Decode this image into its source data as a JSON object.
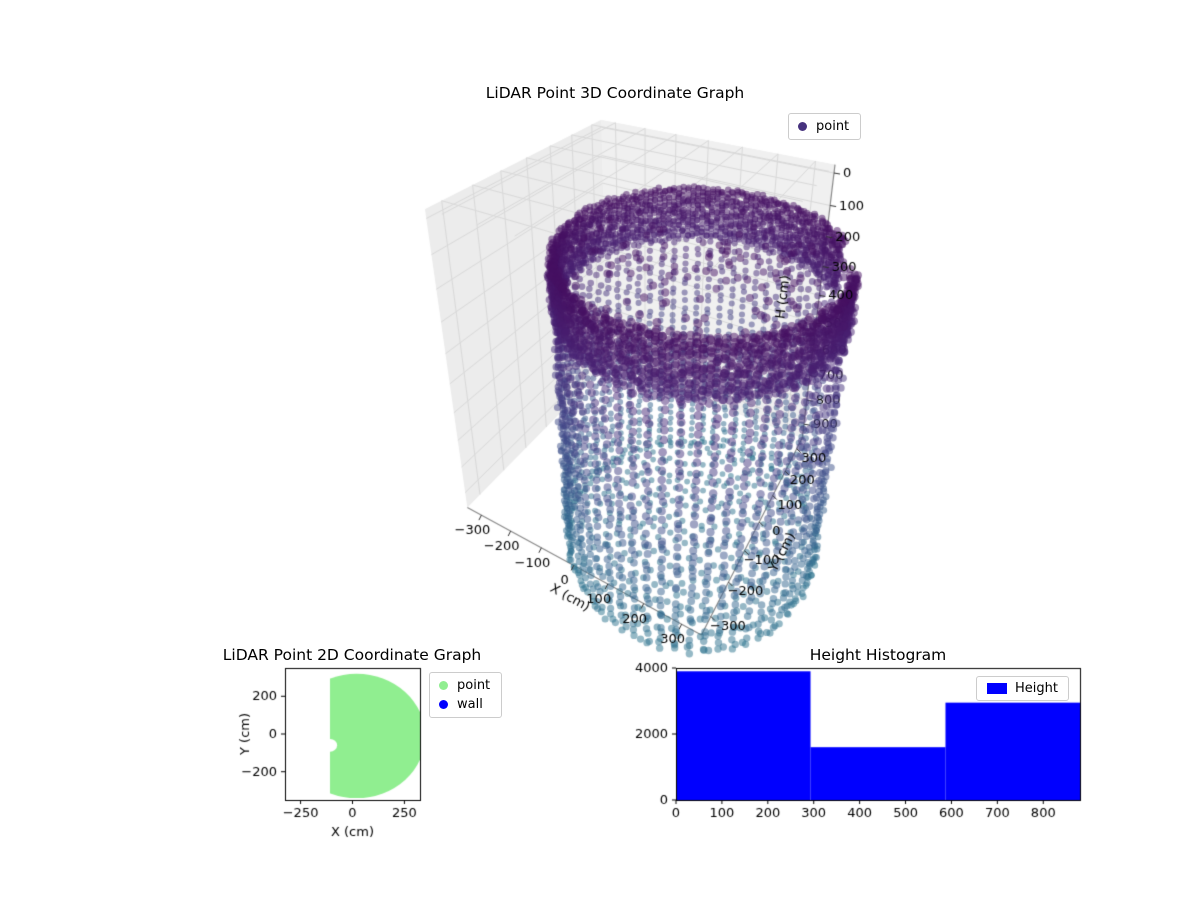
{
  "figure": {
    "background": "#ffffff"
  },
  "chart_data": [
    {
      "id": "lidar-3d",
      "type": "scatter3d",
      "title": "LiDAR Point 3D Coordinate Graph",
      "xlabel": "X (cm)",
      "ylabel": "Y (cm)",
      "zlabel": "H (cm)",
      "xlim": [
        -350,
        350
      ],
      "ylim": [
        -350,
        350
      ],
      "hlim": [
        -25,
        960
      ],
      "h_axis_inverted": true,
      "x_ticks": [
        -300,
        -200,
        -100,
        0,
        100,
        200,
        300
      ],
      "y_ticks": [
        -300,
        -200,
        -100,
        0,
        100,
        200,
        300
      ],
      "h_ticks": [
        0,
        100,
        200,
        300,
        400,
        500,
        600,
        700,
        800,
        900
      ],
      "h_ticks_visible_max": 400,
      "legend": [
        {
          "label": "point",
          "color": "#46327e"
        }
      ],
      "view": {
        "azim_deg": -60,
        "elev_deg": 30,
        "dist": 5
      },
      "point_alpha": 0.5,
      "colormap_stops": [
        [
          0.0,
          "#440154"
        ],
        [
          0.1,
          "#482475"
        ],
        [
          0.2,
          "#414487"
        ],
        [
          0.3,
          "#355f8d"
        ],
        [
          0.4,
          "#2a788e"
        ],
        [
          0.5,
          "#21918c"
        ]
      ],
      "cmap_range": [
        0.04,
        0.38
      ],
      "cloud": {
        "shape": "cylinder-room",
        "center_x": 230,
        "center_y": -170,
        "radius": 300,
        "h_min": 0,
        "h_max": 880,
        "gap_azim_deg": [
          14,
          38
        ],
        "dense_band": {
          "h_to": 150,
          "columns": 160,
          "h_step": 9
        },
        "wall": {
          "columns": 62,
          "h_step": 24
        },
        "ceiling": {
          "count": 150,
          "h_to": 70
        },
        "floor": {
          "rings": 10,
          "point_spacing_cm": 26,
          "h_jitter": 25
        }
      }
    },
    {
      "id": "lidar-2d",
      "type": "scatter",
      "title": "LiDAR Point 2D Coordinate Graph",
      "xlabel": "X (cm)",
      "ylabel": "Y (cm)",
      "xlim": [
        -325,
        325
      ],
      "ylim": [
        -350,
        350
      ],
      "x_ticks": [
        -250,
        0,
        250
      ],
      "y_ticks": [
        -200,
        0,
        200
      ],
      "legend": [
        {
          "label": "point",
          "color": "#90ee90"
        },
        {
          "label": "wall",
          "color": "#0000ff"
        }
      ],
      "region": {
        "type": "clipped-disc",
        "cx": 20,
        "cy": -10,
        "r": 330,
        "flat_left_x": -108,
        "notch": {
          "x": -108,
          "y": -60,
          "r": 34
        },
        "color": "#90ee90"
      }
    },
    {
      "id": "height-histogram",
      "type": "bar",
      "title": "Height Histogram",
      "xlabel": "",
      "ylabel": "",
      "xlim": [
        0,
        880
      ],
      "ylim": [
        0,
        4000
      ],
      "x_ticks": [
        0,
        100,
        200,
        300,
        400,
        500,
        600,
        700,
        800
      ],
      "y_ticks": [
        0,
        2000,
        4000
      ],
      "bin_edges": [
        0,
        293,
        587,
        880
      ],
      "counts": [
        3900,
        1600,
        2950
      ],
      "bar_color": "#0000ff",
      "legend": [
        {
          "label": "Height",
          "color": "#0000ff"
        }
      ]
    }
  ]
}
